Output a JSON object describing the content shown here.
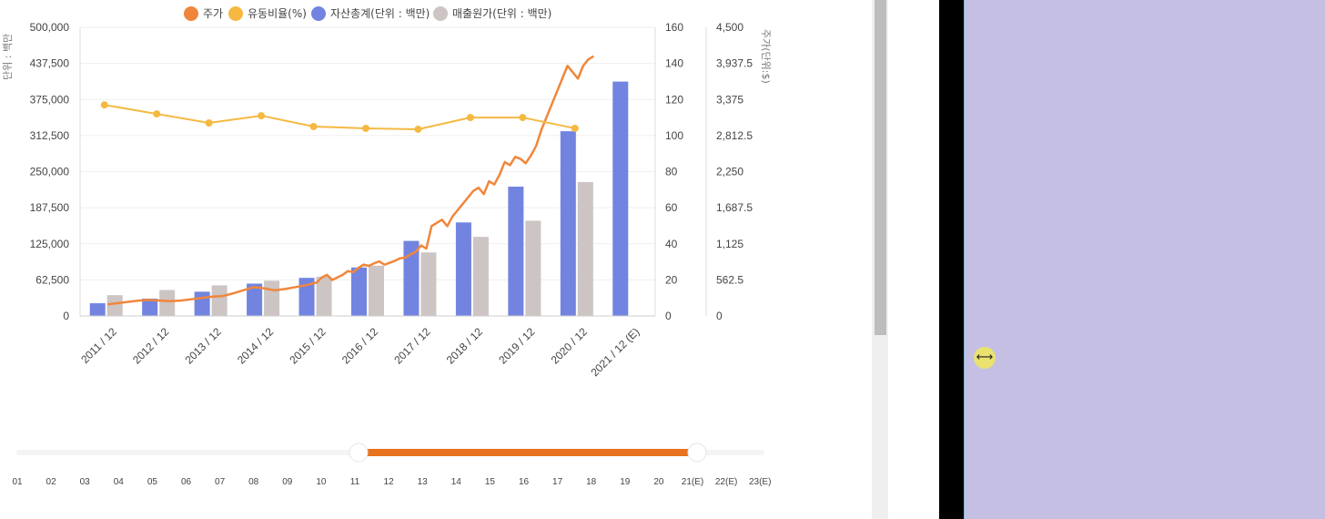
{
  "legend": [
    {
      "label": "주가",
      "color": "#f0863c"
    },
    {
      "label": "유동비율(%)",
      "color": "#f5b942"
    },
    {
      "label": "자산총계(단위 : 백만)",
      "color": "#7284e0"
    },
    {
      "label": "매출원가(단위 : 백만)",
      "color": "#ccc5c3"
    }
  ],
  "axes": {
    "left_title": "단위 : 백만",
    "right2_title": "주가(단위:$)",
    "left_ticks": [
      "0",
      "62,500",
      "125,000",
      "187,500",
      "250,000",
      "312,500",
      "375,000",
      "437,500",
      "500,000"
    ],
    "right1_ticks": [
      "0",
      "20",
      "40",
      "60",
      "80",
      "100",
      "120",
      "140",
      "160"
    ],
    "right2_ticks": [
      "0",
      "562.5",
      "1,125",
      "1,687.5",
      "2,250",
      "2,812.5",
      "3,375",
      "3,937.5",
      "4,500"
    ]
  },
  "chart_data": {
    "type": "bar",
    "categories": [
      "2011 / 12",
      "2012 / 12",
      "2013 / 12",
      "2014 / 12",
      "2015 / 12",
      "2016 / 12",
      "2017 / 12",
      "2018 / 12",
      "2019 / 12",
      "2020 / 12",
      "2021 / 12 (E)"
    ],
    "ylim_left": [
      0,
      500000
    ],
    "ylim_right_ratio": [
      0,
      160
    ],
    "ylim_right_price": [
      0,
      4500
    ],
    "series": [
      {
        "name": "자산총계(단위 : 백만)",
        "type": "bar",
        "axis": "left",
        "color": "#7284e0",
        "values": [
          22000,
          30000,
          42000,
          56000,
          66000,
          84000,
          130000,
          162000,
          224000,
          320000,
          406000
        ]
      },
      {
        "name": "매출원가(단위 : 백만)",
        "type": "bar",
        "axis": "left",
        "color": "#ccc5c3",
        "values": [
          36000,
          45000,
          53000,
          61000,
          68000,
          87000,
          110000,
          137000,
          165000,
          232000,
          null
        ]
      },
      {
        "name": "유동비율(%)",
        "type": "line",
        "axis": "right_ratio",
        "color": "#f5b942",
        "values": [
          117,
          112,
          107,
          111,
          105,
          104,
          103.5,
          110,
          110,
          104,
          null
        ]
      },
      {
        "name": "주가",
        "type": "line",
        "axis": "right_price",
        "color": "#f0863c",
        "points": [
          [
            0,
            180
          ],
          [
            0.2,
            200
          ],
          [
            0.4,
            220
          ],
          [
            0.6,
            240
          ],
          [
            0.8,
            250
          ],
          [
            1.0,
            240
          ],
          [
            1.2,
            230
          ],
          [
            1.4,
            240
          ],
          [
            1.6,
            260
          ],
          [
            1.8,
            280
          ],
          [
            2.0,
            300
          ],
          [
            2.2,
            310
          ],
          [
            2.4,
            350
          ],
          [
            2.6,
            400
          ],
          [
            2.8,
            450
          ],
          [
            3.0,
            430
          ],
          [
            3.2,
            400
          ],
          [
            3.4,
            420
          ],
          [
            3.6,
            450
          ],
          [
            3.8,
            480
          ],
          [
            4.0,
            520
          ],
          [
            4.1,
            600
          ],
          [
            4.2,
            640
          ],
          [
            4.3,
            560
          ],
          [
            4.4,
            600
          ],
          [
            4.5,
            640
          ],
          [
            4.6,
            700
          ],
          [
            4.7,
            680
          ],
          [
            4.8,
            750
          ],
          [
            4.9,
            800
          ],
          [
            5.0,
            780
          ],
          [
            5.1,
            820
          ],
          [
            5.2,
            850
          ],
          [
            5.3,
            800
          ],
          [
            5.4,
            830
          ],
          [
            5.5,
            860
          ],
          [
            5.6,
            900
          ],
          [
            5.7,
            910
          ],
          [
            5.8,
            960
          ],
          [
            5.9,
            1000
          ],
          [
            6.0,
            1100
          ],
          [
            6.1,
            1050
          ],
          [
            6.2,
            1400
          ],
          [
            6.3,
            1450
          ],
          [
            6.4,
            1500
          ],
          [
            6.5,
            1400
          ],
          [
            6.6,
            1550
          ],
          [
            6.7,
            1650
          ],
          [
            6.8,
            1750
          ],
          [
            6.9,
            1850
          ],
          [
            7.0,
            1950
          ],
          [
            7.1,
            2000
          ],
          [
            7.2,
            1900
          ],
          [
            7.3,
            2100
          ],
          [
            7.4,
            2050
          ],
          [
            7.5,
            2200
          ],
          [
            7.6,
            2400
          ],
          [
            7.7,
            2350
          ],
          [
            7.8,
            2480
          ],
          [
            7.9,
            2450
          ],
          [
            8.0,
            2380
          ],
          [
            8.1,
            2500
          ],
          [
            8.2,
            2650
          ],
          [
            8.3,
            2900
          ],
          [
            8.4,
            3100
          ],
          [
            8.5,
            3300
          ],
          [
            8.6,
            3500
          ],
          [
            8.7,
            3700
          ],
          [
            8.8,
            3900
          ],
          [
            8.9,
            3800
          ],
          [
            9.0,
            3700
          ],
          [
            9.1,
            3900
          ],
          [
            9.2,
            4000
          ],
          [
            9.3,
            4050
          ]
        ]
      }
    ]
  },
  "slider": {
    "labels": [
      "01",
      "02",
      "03",
      "04",
      "05",
      "06",
      "07",
      "08",
      "09",
      "10",
      "11",
      "12",
      "13",
      "14",
      "15",
      "16",
      "17",
      "18",
      "19",
      "20",
      "21(E)",
      "22(E)",
      "23(E)"
    ],
    "range_start": "11",
    "range_end": "21(E)",
    "accent_color": "#e8731f"
  }
}
